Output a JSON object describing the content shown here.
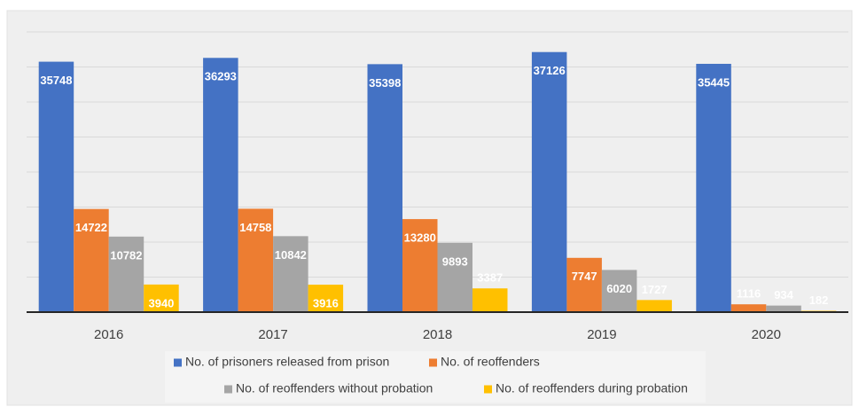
{
  "chart_data": {
    "type": "bar",
    "categories": [
      "2016",
      "2017",
      "2018",
      "2019",
      "2020"
    ],
    "series": [
      {
        "name": "No. of prisoners released from prison",
        "color": "#4472c4",
        "values": [
          35748,
          36293,
          35398,
          37126,
          35445
        ]
      },
      {
        "name": "No. of reoffenders",
        "color": "#ed7d31",
        "values": [
          14722,
          14758,
          13280,
          7747,
          1116
        ]
      },
      {
        "name": "No. of reoffenders without probation",
        "color": "#a5a5a5",
        "values": [
          10782,
          10842,
          9893,
          6020,
          934
        ]
      },
      {
        "name": "No. of reoffenders during probation",
        "color": "#ffc000",
        "values": [
          3940,
          3916,
          3387,
          1727,
          182
        ]
      }
    ],
    "ylim": [
      0,
      40000
    ],
    "yticks": [
      0,
      5000,
      10000,
      15000,
      20000,
      25000,
      30000,
      35000,
      40000
    ],
    "grid": true
  }
}
